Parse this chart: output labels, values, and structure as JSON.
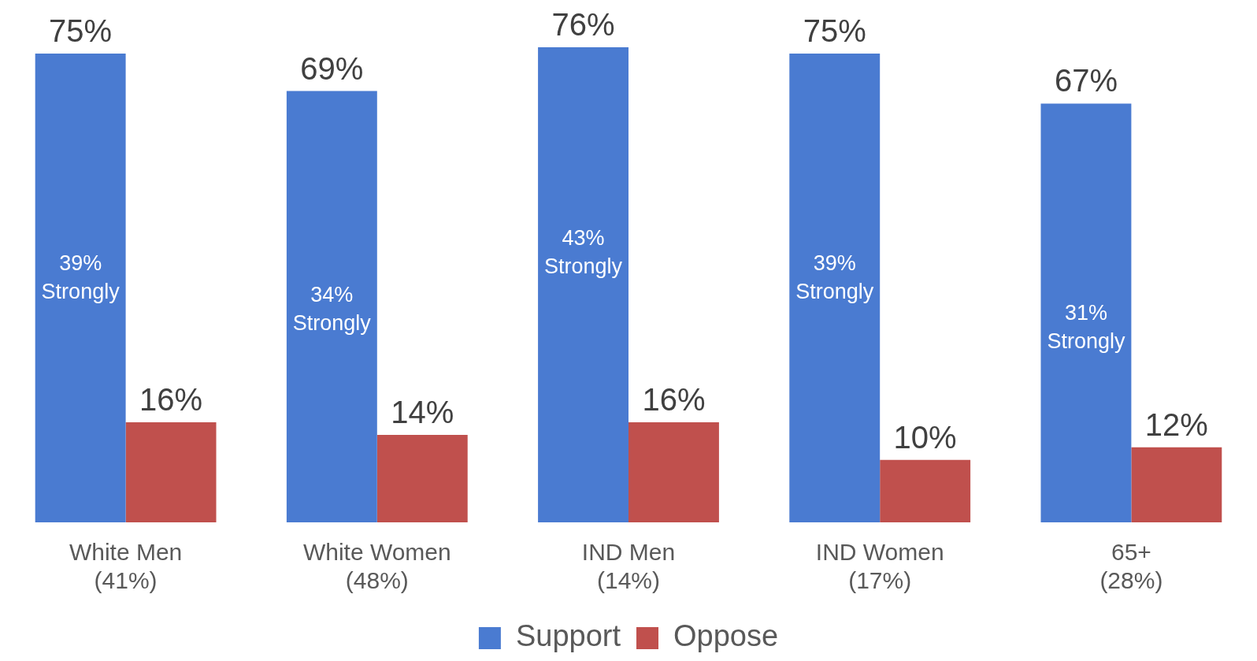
{
  "chart_data": {
    "type": "bar",
    "categories": [
      "White Men\n(41%)",
      "White Women\n(48%)",
      "IND Men\n(14%)",
      "IND Women\n(17%)",
      "65+\n(28%)"
    ],
    "series": [
      {
        "name": "Support",
        "color": "#4a7bd1",
        "values": [
          75,
          69,
          76,
          75,
          67
        ],
        "value_labels": [
          "75%",
          "69%",
          "76%",
          "75%",
          "67%"
        ]
      },
      {
        "name": "Oppose",
        "color": "#c0504d",
        "values": [
          16,
          14,
          16,
          10,
          12
        ],
        "value_labels": [
          "16%",
          "14%",
          "16%",
          "10%",
          "12%"
        ]
      }
    ],
    "legend": "bottom",
    "grid": false,
    "annotations": [
      {
        "text": "39% Strongly",
        "x": "White Men\n(41%)",
        "y": 39
      },
      {
        "text": "34% Strongly",
        "x": "White Women\n(48%)",
        "y": 34
      },
      {
        "text": "43% Strongly",
        "x": "IND Men\n(14%)",
        "y": 43
      },
      {
        "text": "39% Strongly",
        "x": "IND Women\n(17%)",
        "y": 39
      },
      {
        "text": "31% Strongly",
        "x": "65+\n(28%)",
        "y": 31
      }
    ]
  }
}
